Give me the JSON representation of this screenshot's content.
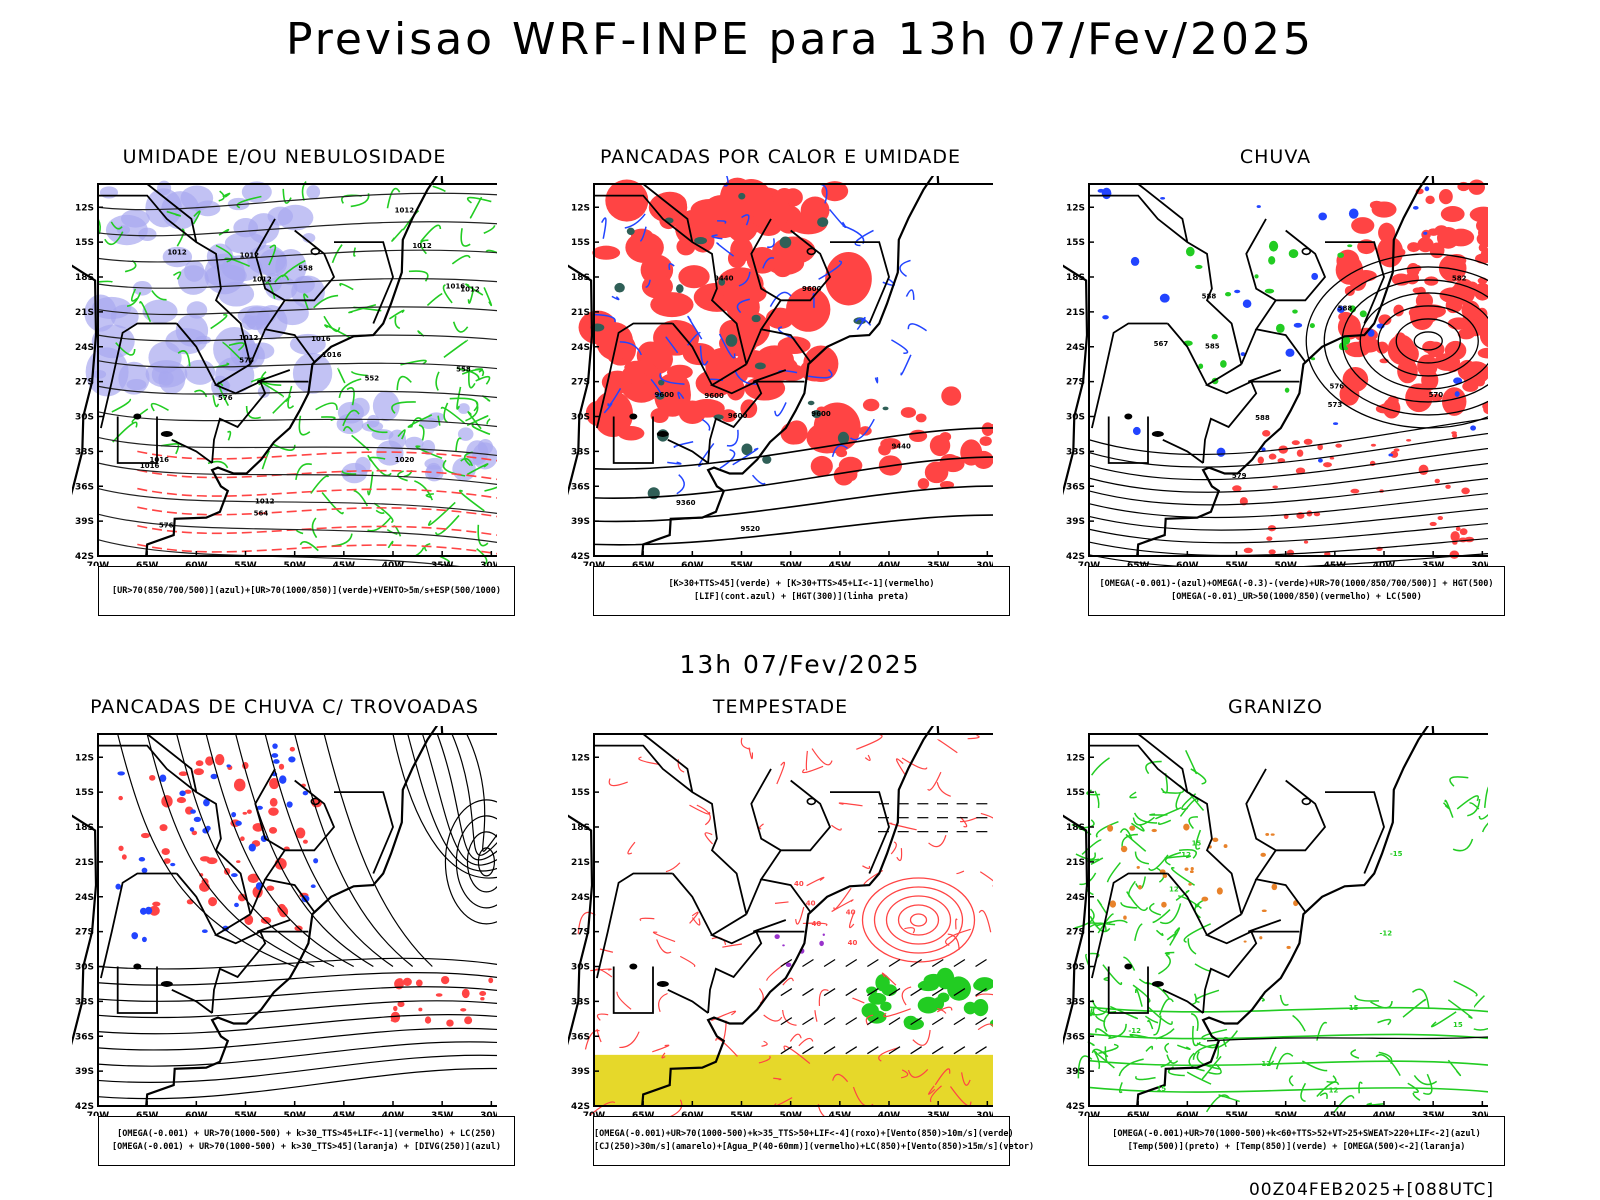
{
  "header": {
    "title": "Previsao WRF-INPE  para 13h 07/Fev/2025",
    "mid_title": "13h 07/Fev/2025",
    "footer": "00Z04FEB2025+[088UTC]"
  },
  "colors": {
    "frame": "#000000",
    "humidity_blue": "#a8a8f0",
    "green": "#22cc22",
    "red": "#ff4444",
    "blue": "#2244ff",
    "dark_teal": "#2f5f57",
    "yellow": "#e6d82a",
    "orange": "#e8822a",
    "purple": "#9933cc"
  },
  "axes": {
    "lat_ticks": [
      "12S",
      "15S",
      "18S",
      "21S",
      "24S",
      "27S",
      "30S",
      "33S",
      "36S",
      "39S",
      "42S"
    ],
    "lon_ticks": [
      "70W",
      "65W",
      "60W",
      "55W",
      "50W",
      "45W",
      "40W",
      "35W",
      "30W"
    ],
    "lat_range": [
      -42,
      -10
    ],
    "lon_range": [
      -70,
      -28
    ]
  },
  "panels": [
    {
      "title": "UMIDADE E/OU NEBULOSIDADE",
      "legend": [
        "[UR>70(850/700/500)](azul)+[UR>70(1000/850)](verde)+VENTO>5m/s+ESP(500/1000)"
      ],
      "labels": [
        "1012",
        "1012",
        "1012",
        "1012",
        "1016",
        "1016",
        "1016",
        "1020",
        "1012",
        "1012",
        "1016",
        "1016",
        "1012",
        "1012",
        "576",
        "576",
        "570",
        "564",
        "558",
        "558",
        "552"
      ]
    },
    {
      "title": "PANCADAS POR CALOR E UMIDADE",
      "legend": [
        "[K>30+TTS>45](verde) + [K>30+TTS>45+LI<-1](vermelho)",
        "[LIF](cont.azul) + [HGT(300)](linha preta)"
      ],
      "labels": [
        "9600",
        "9600",
        "9600",
        "9600",
        "9600",
        "9520",
        "9440",
        "9440",
        "9360"
      ]
    },
    {
      "title": "CHUVA",
      "legend": [
        "[OMEGA(-0.001)-(azul)+OMEGA(-0.3)-(verde)+UR>70(1000/850/700/500)] + HGT(500)",
        "[OMEGA(-0.01)_UR>50(1000/850)(vermelho) + LC(500)"
      ],
      "labels": [
        "588",
        "588",
        "588",
        "585",
        "582",
        "579",
        "576",
        "573",
        "570",
        "567"
      ]
    },
    {
      "title": "PANCADAS DE CHUVA C/ TROVOADAS",
      "legend": [
        "[OMEGA(-0.001) + UR>70(1000-500) + k>30_TTS>45+LIF<-1](vermelho) + LC(250)",
        "[OMEGA(-0.001) + UR>70(1000-500) + k>30_TTS>45](laranja) + [DIVG(250)](azul)"
      ],
      "labels": []
    },
    {
      "title": "TEMPESTADE",
      "legend": [
        "[OMEGA(-0.001)+UR>70(1000-500)+k>35_TTS>50+LIF<-4](roxo)+[Vento(850)>10m/s](verde)",
        "[CJ(250)>30m/s](amarelo)+[Agua_P(40-60mm)](vermelho)+LC(850)+[Vento(850)>15m/s](vetor)"
      ],
      "labels": [
        "40",
        "40",
        "40",
        "40",
        "40"
      ]
    },
    {
      "title": "GRANIZO",
      "legend": [
        "[OMEGA(-0.001)+UR>70(1000-500)+k<60+TTS>52+VT>25+SWEAT>220+LIF<-2](azul)",
        "[Temp(500)](preto) + [Temp(850)](verde) + [OMEGA(500)<-2](laranja)"
      ],
      "labels": [
        "15",
        "15",
        "15",
        "15",
        "12",
        "12",
        "12",
        "12",
        "-12",
        "-12",
        "-15"
      ]
    }
  ],
  "chart_data": [
    {
      "type": "heatmap",
      "title": "UMIDADE E/OU NEBULOSIDADE",
      "xlabel": "",
      "ylabel": "",
      "xlim": [
        -70,
        -28
      ],
      "ylim": [
        -42,
        -10
      ],
      "contour_levels": [
        1012,
        1016,
        1020
      ],
      "thickness_levels": [
        552,
        558,
        564,
        570,
        576
      ]
    },
    {
      "type": "heatmap",
      "title": "PANCADAS POR CALOR E UMIDADE",
      "xlabel": "",
      "ylabel": "",
      "xlim": [
        -70,
        -28
      ],
      "ylim": [
        -42,
        -10
      ],
      "contour_levels": [
        9360,
        9440,
        9520,
        9600
      ]
    },
    {
      "type": "heatmap",
      "title": "CHUVA",
      "xlabel": "",
      "ylabel": "",
      "xlim": [
        -70,
        -28
      ],
      "ylim": [
        -42,
        -10
      ],
      "contour_levels": [
        567,
        570,
        573,
        576,
        579,
        582,
        585,
        588
      ]
    },
    {
      "type": "heatmap",
      "title": "PANCADAS DE CHUVA C/ TROVOADAS",
      "xlabel": "",
      "ylabel": "",
      "xlim": [
        -70,
        -28
      ],
      "ylim": [
        -42,
        -10
      ]
    },
    {
      "type": "heatmap",
      "title": "TEMPESTADE",
      "xlabel": "",
      "ylabel": "",
      "xlim": [
        -70,
        -28
      ],
      "ylim": [
        -42,
        -10
      ],
      "contour_levels": [
        40
      ]
    },
    {
      "type": "heatmap",
      "title": "GRANIZO",
      "xlabel": "",
      "ylabel": "",
      "xlim": [
        -70,
        -28
      ],
      "ylim": [
        -42,
        -10
      ],
      "contour_levels": [
        -15,
        -12,
        12,
        15
      ]
    }
  ]
}
